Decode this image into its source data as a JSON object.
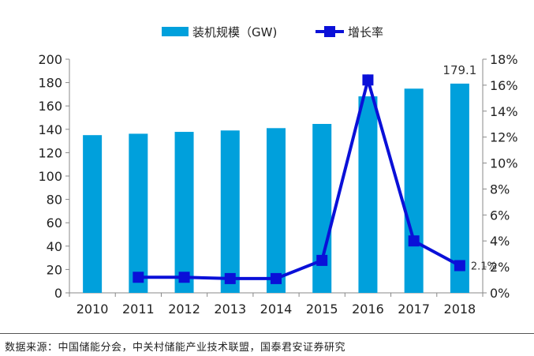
{
  "chart_data": {
    "type": "bar+line",
    "categories": [
      "2010",
      "2011",
      "2012",
      "2013",
      "2014",
      "2015",
      "2016",
      "2017",
      "2018"
    ],
    "series": [
      {
        "name": "装机规模（GW)",
        "type": "bar",
        "axis": "left",
        "color": "#00A0DC",
        "values": [
          135,
          136.2,
          137.8,
          139,
          141,
          144.6,
          168.2,
          174.8,
          179.1
        ]
      },
      {
        "name": "增长率",
        "type": "line",
        "axis": "right",
        "color": "#0A10D8",
        "values": [
          null,
          1.2,
          1.2,
          1.1,
          1.1,
          2.5,
          16.4,
          4.0,
          2.1
        ]
      }
    ],
    "y_left": {
      "range": [
        0,
        200
      ],
      "ticks": [
        "0",
        "20",
        "40",
        "60",
        "80",
        "100",
        "120",
        "140",
        "160",
        "180",
        "200"
      ]
    },
    "y_right": {
      "range": [
        0,
        18
      ],
      "ticks": [
        "0%",
        "2%",
        "4%",
        "6%",
        "8%",
        "10%",
        "12%",
        "14%",
        "16%",
        "18%"
      ]
    },
    "data_labels": {
      "bar_2018": "179.1",
      "line_2018": "2.1%"
    },
    "legend": "top",
    "grid": false
  },
  "source": "数据来源：中国储能分会，中关村储能产业技术联盟，国泰君安证券研究"
}
